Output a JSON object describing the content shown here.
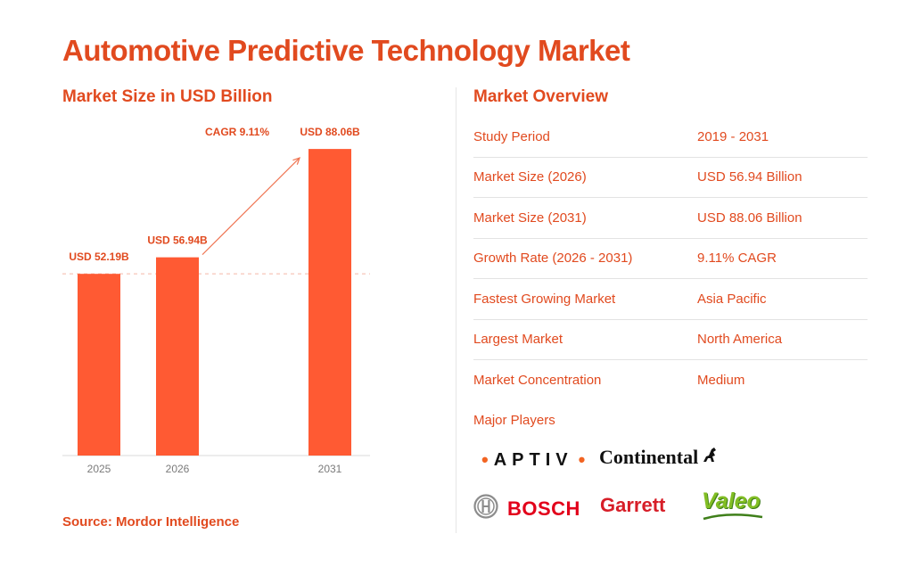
{
  "title": "Automotive Predictive Technology Market",
  "chart_subtitle": "Market Size in USD Billion",
  "source": "Source: Mordor Intelligence",
  "chart_data": {
    "type": "bar",
    "categories": [
      "2025",
      "2026",
      "2031"
    ],
    "values": [
      52.19,
      56.94,
      88.06
    ],
    "value_labels": [
      "USD 52.19B",
      "USD 56.94B",
      "USD 88.06B"
    ],
    "annotation": "CAGR 9.11%",
    "ylim": [
      0,
      95
    ],
    "bar_color": "#ff5a33",
    "reference_line": {
      "value": 52.19,
      "style": "dashed",
      "color": "#f5b7a6"
    }
  },
  "overview": {
    "title": "Market Overview",
    "rows": [
      {
        "label": "Study Period",
        "value": "2019 - 2031"
      },
      {
        "label": "Market Size (2026)",
        "value": "USD 56.94 Billion"
      },
      {
        "label": "Market Size (2031)",
        "value": "USD 88.06 Billion"
      },
      {
        "label": "Growth Rate (2026 - 2031)",
        "value": "9.11% CAGR"
      },
      {
        "label": "Fastest Growing Market",
        "value": "Asia Pacific"
      },
      {
        "label": "Largest Market",
        "value": "North America"
      },
      {
        "label": "Market Concentration",
        "value": "Medium"
      }
    ],
    "players_label": "Major Players",
    "players": [
      "APTIV",
      "Continental",
      "BOSCH",
      "Garrett",
      "Valeo"
    ]
  },
  "colors": {
    "accent": "#e14a1f",
    "bar": "#ff5a33"
  }
}
